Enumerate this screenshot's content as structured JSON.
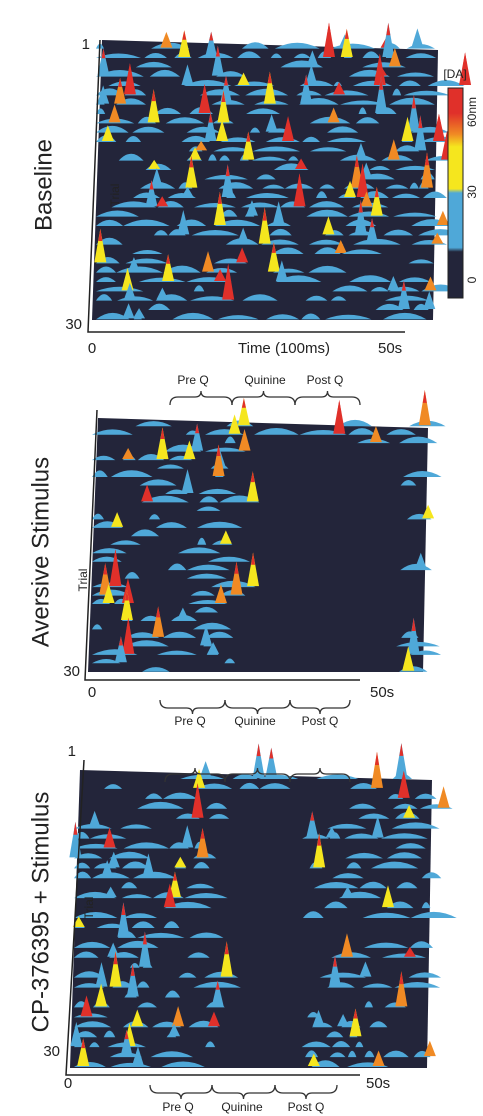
{
  "panels": [
    {
      "label": "Baseline",
      "axis_label": "Trial",
      "trial_start": "1",
      "trial_end": "30",
      "time_start": "0",
      "time_label": "Time (100ms)",
      "time_end": "50s",
      "colorbar": {
        "title": "[DA]",
        "ticks": [
          "60nm",
          "30",
          "0"
        ]
      }
    },
    {
      "label": "Aversive Stimulus",
      "axis_label": "Trial",
      "trial_end": "30",
      "time_start": "0",
      "time_end": "50s",
      "top_phases": [
        "Pre Q",
        "Quinine",
        "Post Q"
      ],
      "bottom_phases": [
        "Pre Q",
        "Quinine",
        "Post Q"
      ]
    },
    {
      "label": "CP-376395 + Stimulus",
      "axis_label": "Trial",
      "trial_start": "1",
      "trial_end": "30",
      "time_start": "0",
      "time_end": "50s",
      "bottom_phases": [
        "Pre Q",
        "Quinine",
        "Post Q"
      ]
    }
  ]
}
